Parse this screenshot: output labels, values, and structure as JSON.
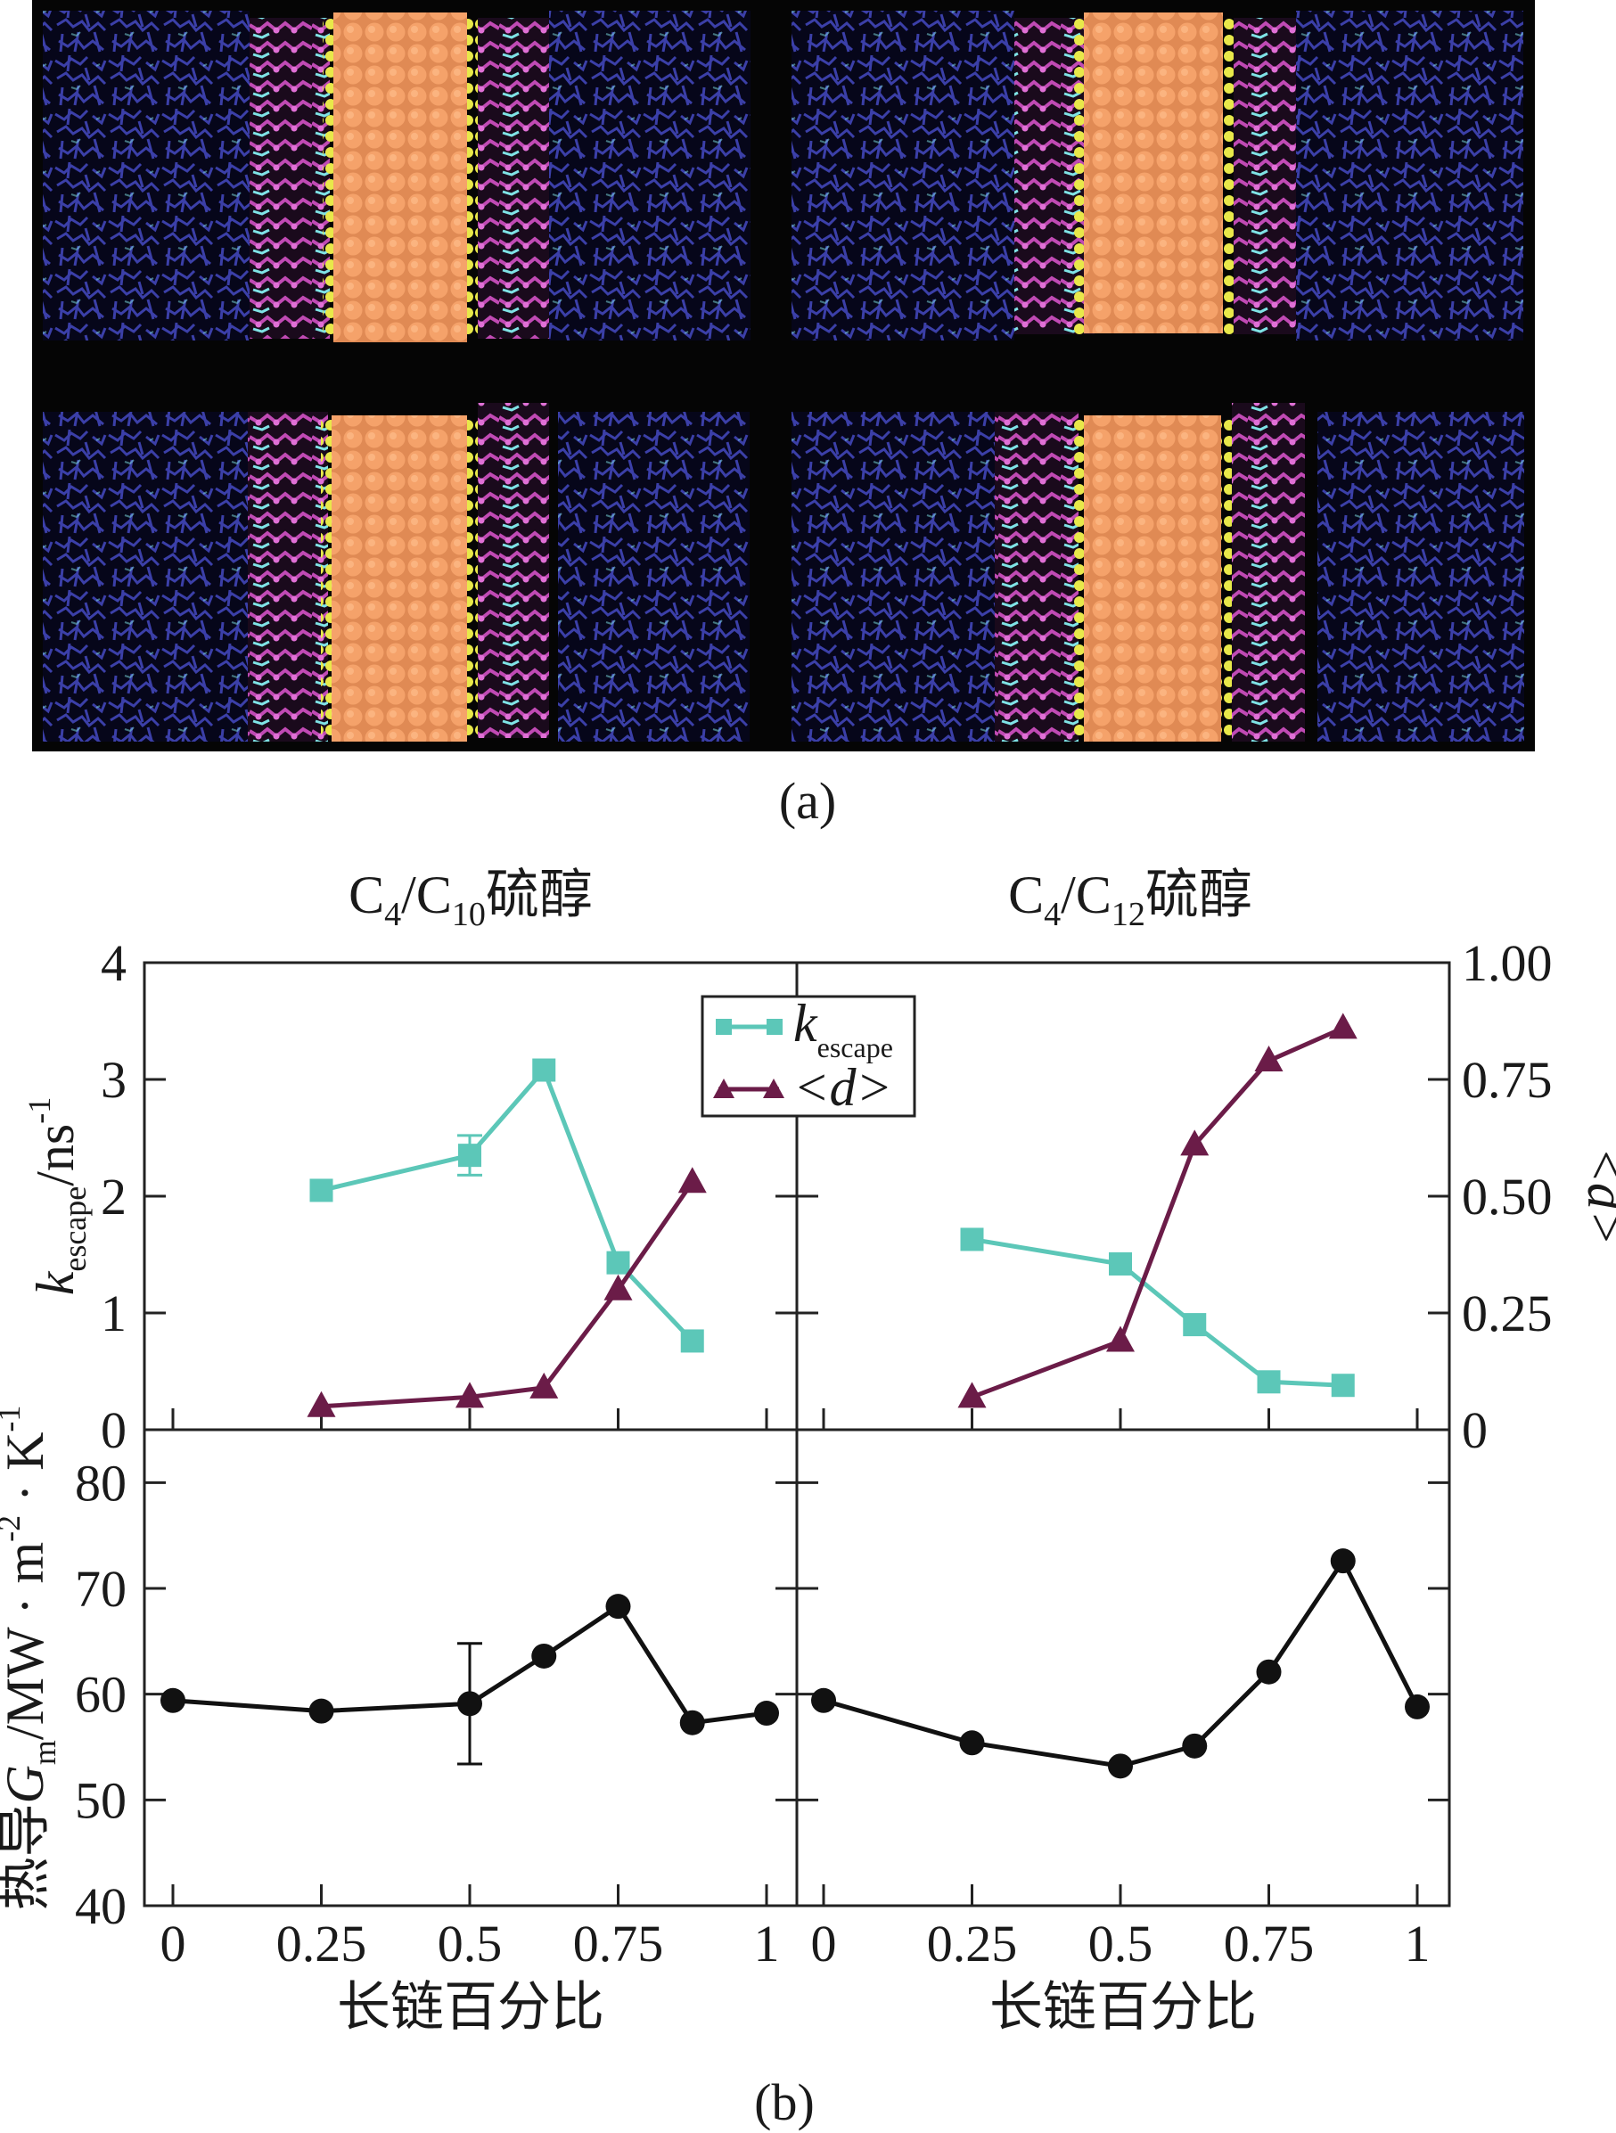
{
  "figure": {
    "label_a": "(a)",
    "label_b": "(b)"
  },
  "colors": {
    "k_escape": "#5cc7b8",
    "d_mean": "#6b1c48",
    "conductance": "#111111",
    "md_background": "#050505",
    "solvent": "#3b3fa8",
    "gold": "#f5a26a",
    "short_chain": "#7fe3e6",
    "long_chain": "#c04ab4",
    "sulfur": "#e8e84a"
  },
  "panel_a": {
    "description_icons": [
      "md-snapshot-c4-c10-a",
      "md-snapshot-c4-c12-a",
      "md-snapshot-c4-c10-b",
      "md-snapshot-c4-c12-b"
    ]
  },
  "panel_b": {
    "left_title": {
      "prefix": "C",
      "sub1": "4",
      "mid": "/C",
      "sub2": "10",
      "suffix": "硫醇"
    },
    "right_title": {
      "prefix": "C",
      "sub1": "4",
      "mid": "/C",
      "sub2": "12",
      "suffix": "硫醇"
    },
    "ylabel_top": {
      "k": "k",
      "sub": "escape",
      "unit": "/ns",
      "sup": "-1"
    },
    "ylabel_right": "<d>",
    "ylabel_bottom": {
      "pre": "热导",
      "G": "G",
      "sub": "m",
      "unit1": "/MW · m",
      "sup1": "-2",
      "unit2": " · K",
      "sup2": "-1"
    },
    "xlabel": "长链百分比",
    "legend": {
      "k_label": "k",
      "k_sub": "escape",
      "d_label": "<d>"
    }
  },
  "chart_data": [
    {
      "type": "line",
      "panel": "top-left",
      "title": "C4/C10硫醇",
      "xlim": [
        0,
        1
      ],
      "ylim_left": [
        0,
        4
      ],
      "ylim_right": [
        0,
        1.0
      ],
      "yticks_left": [
        "0",
        "1",
        "2",
        "3",
        "4"
      ],
      "yticks_right": [
        "0",
        "0.25",
        "0.50",
        "0.75",
        "1.00"
      ],
      "series": [
        {
          "name": "k_escape",
          "axis": "left",
          "marker": "square",
          "x": [
            0.25,
            0.5,
            0.625,
            0.75,
            0.875
          ],
          "y": [
            2.05,
            2.35,
            3.08,
            1.43,
            0.76
          ],
          "error": [
            null,
            0.17,
            null,
            null,
            null
          ]
        },
        {
          "name": "<d>",
          "axis": "right",
          "marker": "triangle",
          "x": [
            0.25,
            0.5,
            0.625,
            0.75,
            0.875
          ],
          "y": [
            0.05,
            0.07,
            0.09,
            0.3,
            0.53
          ]
        }
      ]
    },
    {
      "type": "line",
      "panel": "top-right",
      "title": "C4/C12硫醇",
      "xlim": [
        0,
        1
      ],
      "ylim_left": [
        0,
        4
      ],
      "ylim_right": [
        0,
        1.0
      ],
      "series": [
        {
          "name": "k_escape",
          "axis": "left",
          "marker": "square",
          "x": [
            0.25,
            0.5,
            0.625,
            0.75,
            0.875
          ],
          "y": [
            1.63,
            1.42,
            0.9,
            0.41,
            0.38
          ]
        },
        {
          "name": "<d>",
          "axis": "right",
          "marker": "triangle",
          "x": [
            0.25,
            0.5,
            0.625,
            0.75,
            0.875
          ],
          "y": [
            0.07,
            0.19,
            0.61,
            0.79,
            0.86
          ]
        }
      ]
    },
    {
      "type": "line",
      "panel": "bottom-left",
      "xlabel": "长链百分比",
      "xlim": [
        0,
        1
      ],
      "ylim": [
        40,
        85
      ],
      "yticks": [
        "40",
        "50",
        "60",
        "70",
        "80"
      ],
      "xticks": [
        "0",
        "0.25",
        "0.5",
        "0.75",
        "1"
      ],
      "series": [
        {
          "name": "G_m",
          "marker": "circle",
          "x": [
            0,
            0.25,
            0.5,
            0.625,
            0.75,
            0.875,
            1
          ],
          "y": [
            59.4,
            58.4,
            59.1,
            63.6,
            68.3,
            57.3,
            58.2
          ],
          "error": [
            null,
            null,
            5.7,
            null,
            null,
            null,
            null
          ]
        }
      ]
    },
    {
      "type": "line",
      "panel": "bottom-right",
      "xlabel": "长链百分比",
      "xlim": [
        0,
        1
      ],
      "ylim": [
        40,
        85
      ],
      "xticks": [
        "0",
        "0.25",
        "0.5",
        "0.75",
        "1"
      ],
      "series": [
        {
          "name": "G_m",
          "marker": "circle",
          "x": [
            0,
            0.25,
            0.5,
            0.625,
            0.75,
            0.875,
            1
          ],
          "y": [
            59.4,
            55.4,
            53.2,
            55.1,
            62.1,
            72.6,
            58.8
          ]
        }
      ]
    }
  ]
}
